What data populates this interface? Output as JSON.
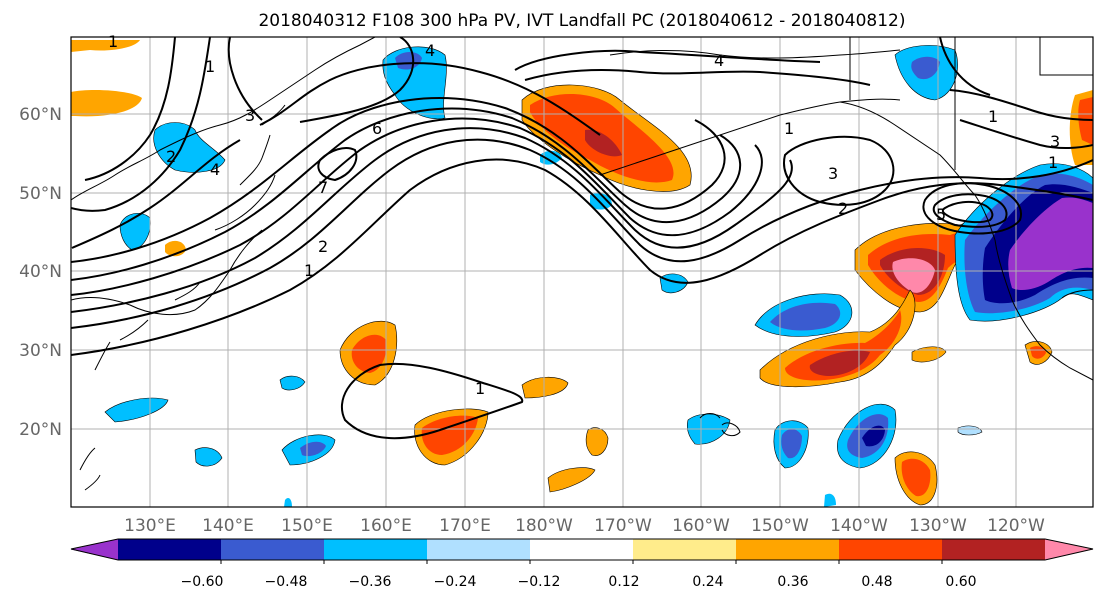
{
  "title": "2018040312 F108 300 hPa PV, IVT Landfall PC (2018040612 - 2018040812)",
  "map": {
    "lon_labels": [
      "130°E",
      "140°E",
      "150°E",
      "160°E",
      "170°E",
      "180°W",
      "170°W",
      "160°W",
      "150°W",
      "140°W",
      "130°W",
      "120°W"
    ],
    "lat_labels": [
      "60°N",
      "50°N",
      "40°N",
      "30°N",
      "20°N"
    ]
  },
  "contour_labels": [
    "1",
    "1",
    "4",
    "4",
    "3",
    "1",
    "3",
    "2",
    "2",
    "4",
    "1",
    "1",
    "6",
    "7",
    "3",
    "2",
    "1",
    "5",
    "1"
  ],
  "colorbar": {
    "colors": [
      "#9932cc",
      "#00008b",
      "#3a5bd0",
      "#00bfff",
      "#b0e0ff",
      "#ffffff",
      "#ffec8b",
      "#ffa500",
      "#ff4500",
      "#b22222",
      "#ff88aa"
    ],
    "tick_labels": [
      "−0.60",
      "−0.48",
      "−0.36",
      "−0.24",
      "−0.12",
      "0.12",
      "0.24",
      "0.36",
      "0.48",
      "0.60"
    ]
  }
}
